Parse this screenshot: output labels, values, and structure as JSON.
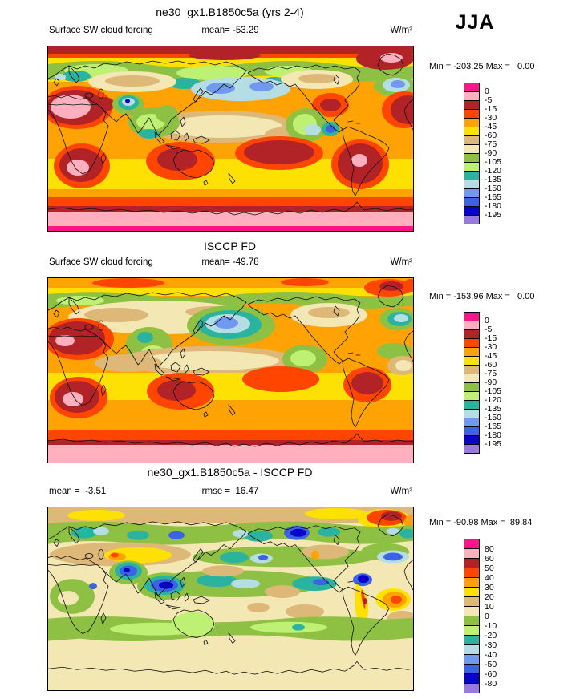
{
  "season": "JJA",
  "palette": [
    "#FF148C",
    "#FFAFBE",
    "#B22328",
    "#FF4500",
    "#FFA305",
    "#FFE003",
    "#DDB878",
    "#F3E7B4",
    "#8EC044",
    "#BDF073",
    "#2AB4A0",
    "#B5DEE4",
    "#7099EF",
    "#3C63E3",
    "#0603CB",
    "#9779DF"
  ],
  "panels": [
    {
      "title": "ne30_gx1.B1850c5a (yrs 2-4)",
      "left_label": "Surface SW cloud forcing",
      "center_label": "mean= -53.29",
      "units": "W/m²",
      "minmax": "Min = -203.25 Max =   0.00",
      "colorbar": {
        "colors": [
          "#FF148C",
          "#FFAFBE",
          "#B22328",
          "#FF4500",
          "#FFA305",
          "#FFE003",
          "#DDB878",
          "#F3E7B4",
          "#8EC044",
          "#BDF073",
          "#2AB4A0",
          "#B5DEE4",
          "#7099EF",
          "#3C63E3",
          "#0603CB",
          "#9779DF"
        ],
        "labels": [
          "0",
          "-5",
          "-15",
          "-30",
          "-45",
          "-60",
          "-75",
          "-90",
          "-105",
          "-120",
          "-135",
          "-150",
          "-165",
          "-180",
          "-195"
        ]
      }
    },
    {
      "title": "ISCCP FD",
      "left_label": "Surface SW cloud forcing",
      "center_label": "mean= -49.78",
      "units": "W/m²",
      "minmax": "Min = -153.96 Max =   0.00",
      "colorbar": {
        "colors": [
          "#FF148C",
          "#FFAFBE",
          "#B22328",
          "#FF4500",
          "#FFA305",
          "#FFE003",
          "#DDB878",
          "#F3E7B4",
          "#8EC044",
          "#BDF073",
          "#2AB4A0",
          "#B5DEE4",
          "#7099EF",
          "#3C63E3",
          "#0603CB",
          "#9779DF"
        ],
        "labels": [
          "0",
          "-5",
          "-15",
          "-30",
          "-45",
          "-60",
          "-75",
          "-90",
          "-105",
          "-120",
          "-135",
          "-150",
          "-165",
          "-180",
          "-195"
        ]
      }
    },
    {
      "title": "ne30_gx1.B1850c5a - ISCCP FD",
      "left_label": "mean =  -3.51",
      "center_label": "rmse =  16.47",
      "units": "W/m²",
      "minmax": "Min = -90.98 Max =  89.84",
      "colorbar": {
        "colors": [
          "#FF148C",
          "#FFAFBE",
          "#B22328",
          "#FF4500",
          "#FFA305",
          "#FFE003",
          "#DDB878",
          "#F3E7B4",
          "#8EC044",
          "#BDF073",
          "#2AB4A0",
          "#B5DEE4",
          "#7099EF",
          "#3C63E3",
          "#0603CB",
          "#9779DF"
        ],
        "labels": [
          "80",
          "60",
          "50",
          "40",
          "30",
          "20",
          "10",
          "0",
          "-10",
          "-20",
          "-30",
          "-40",
          "-50",
          "-60",
          "-80"
        ]
      }
    }
  ],
  "chart_data": [
    {
      "type": "heatmap",
      "subtype": "filled-contour global map",
      "title": "ne30_gx1.B1850c5a (yrs 2-4)",
      "variable": "Surface SW cloud forcing",
      "season": "JJA",
      "units": "W/m²",
      "mean": -53.29,
      "min": -203.25,
      "max": 0.0,
      "contour_levels": [
        0,
        -5,
        -15,
        -30,
        -45,
        -60,
        -75,
        -90,
        -105,
        -120,
        -135,
        -150,
        -165,
        -180,
        -195
      ],
      "legend_position": "right"
    },
    {
      "type": "heatmap",
      "subtype": "filled-contour global map",
      "title": "ISCCP FD",
      "variable": "Surface SW cloud forcing",
      "season": "JJA",
      "units": "W/m²",
      "mean": -49.78,
      "min": -153.96,
      "max": 0.0,
      "contour_levels": [
        0,
        -5,
        -15,
        -30,
        -45,
        -60,
        -75,
        -90,
        -105,
        -120,
        -135,
        -150,
        -165,
        -180,
        -195
      ],
      "legend_position": "right"
    },
    {
      "type": "heatmap",
      "subtype": "filled-contour global map (difference)",
      "title": "ne30_gx1.B1850c5a - ISCCP FD",
      "variable": "Surface SW cloud forcing difference",
      "season": "JJA",
      "units": "W/m²",
      "mean": -3.51,
      "rmse": 16.47,
      "min": -90.98,
      "max": 89.84,
      "contour_levels": [
        80,
        60,
        50,
        40,
        30,
        20,
        10,
        0,
        -10,
        -20,
        -30,
        -40,
        -50,
        -60,
        -80
      ],
      "legend_position": "right"
    }
  ]
}
